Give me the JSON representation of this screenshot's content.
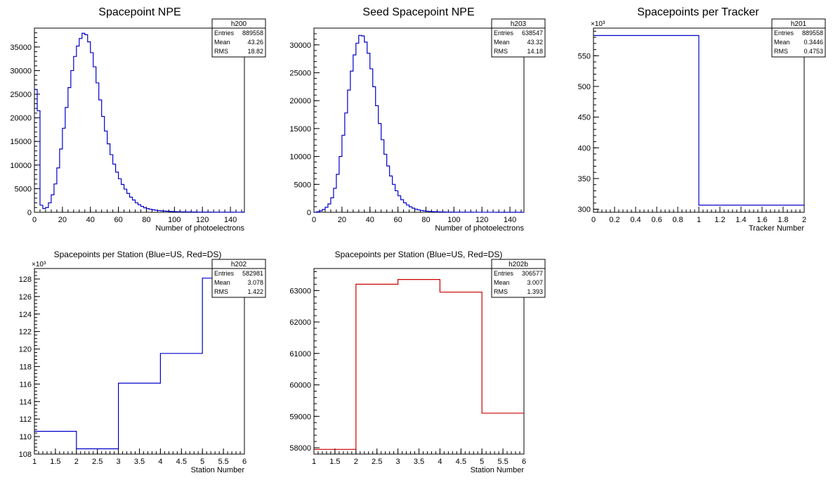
{
  "chart_data": [
    {
      "type": "histogram",
      "title": "Spacepoint NPE",
      "xlabel": "Number of photoelectrons",
      "xlim": [
        0,
        150
      ],
      "ylim": [
        0,
        39000
      ],
      "x_ticks": [
        0,
        20,
        40,
        60,
        80,
        100,
        120,
        140
      ],
      "y_ticks": [
        0,
        5000,
        10000,
        15000,
        20000,
        25000,
        30000,
        35000
      ],
      "y_multiplier": "",
      "stats": {
        "name": "h200",
        "rows": [
          [
            "Entries",
            "889558"
          ],
          [
            "Mean",
            "43.26"
          ],
          [
            "RMS",
            "18.82"
          ]
        ]
      },
      "series": [
        {
          "color": "#0000cc",
          "bin_width": 2,
          "values": [
            26000,
            21500,
            1500,
            800,
            1000,
            2000,
            3700,
            6000,
            9400,
            13400,
            17800,
            22200,
            26400,
            30000,
            33000,
            35200,
            36800,
            37900,
            37600,
            36100,
            33800,
            30800,
            27400,
            23800,
            20300,
            17200,
            14500,
            12200,
            10200,
            8500,
            7100,
            5900,
            4900,
            4000,
            3200,
            2600,
            2000,
            1600,
            1250,
            950,
            780,
            640,
            520,
            430,
            360,
            300,
            260,
            220,
            190,
            160,
            140,
            120,
            100,
            90,
            80,
            70,
            60,
            55,
            50,
            45,
            40,
            35,
            32,
            30,
            28,
            25,
            22,
            20,
            18,
            16,
            15,
            14,
            13,
            12,
            40
          ]
        }
      ]
    },
    {
      "type": "histogram",
      "title": "Seed Spacepoint NPE",
      "xlabel": "Number of photoelectrons",
      "xlim": [
        0,
        150
      ],
      "ylim": [
        0,
        33000
      ],
      "x_ticks": [
        0,
        20,
        40,
        60,
        80,
        100,
        120,
        140
      ],
      "y_ticks": [
        0,
        5000,
        10000,
        15000,
        20000,
        25000,
        30000
      ],
      "y_multiplier": "",
      "stats": {
        "name": "h203",
        "rows": [
          [
            "Entries",
            "638547"
          ],
          [
            "Mean",
            "43.32"
          ],
          [
            "RMS",
            "14.18"
          ]
        ]
      },
      "series": [
        {
          "color": "#0000cc",
          "bin_width": 2,
          "values": [
            0,
            100,
            250,
            500,
            900,
            1500,
            2600,
            4300,
            6800,
            10000,
            13800,
            17800,
            21900,
            25300,
            28200,
            30300,
            31700,
            31600,
            30500,
            28500,
            25700,
            22500,
            19100,
            15900,
            13000,
            10400,
            8300,
            6500,
            5000,
            3850,
            2950,
            2250,
            1700,
            1300,
            980,
            740,
            560,
            420,
            320,
            250,
            190,
            150,
            120,
            95,
            75,
            60,
            50,
            42,
            35,
            30,
            25,
            22,
            20,
            18,
            16,
            14,
            12,
            11,
            10,
            9,
            8,
            7,
            6,
            5,
            5,
            4,
            4,
            3,
            3,
            3,
            2,
            2,
            2,
            2,
            2
          ]
        }
      ]
    },
    {
      "type": "histogram",
      "title": "Spacepoints per Tracker",
      "xlabel": "Tracker Number",
      "xlim": [
        0,
        2
      ],
      "ylim": [
        295,
        595
      ],
      "x_ticks": [
        0,
        0.2,
        0.4,
        0.6,
        0.8,
        1,
        1.2,
        1.4,
        1.6,
        1.8,
        2
      ],
      "y_ticks": [
        300,
        350,
        400,
        450,
        500,
        550
      ],
      "y_multiplier": "×10³",
      "stats": {
        "name": "h201",
        "rows": [
          [
            "Entries",
            "889558"
          ],
          [
            "Mean",
            "0.3446"
          ],
          [
            "RMS",
            "0.4753"
          ]
        ]
      },
      "series": [
        {
          "color": "#0000cc",
          "bin_width": 1,
          "values": [
            582.981,
            306.577
          ]
        }
      ]
    },
    {
      "type": "histogram",
      "title": "Spacepoints per Station (Blue=US, Red=DS)",
      "xlabel": "Station Number",
      "xlim": [
        1,
        6
      ],
      "ylim": [
        108,
        129.2
      ],
      "x_ticks": [
        1,
        1.5,
        2,
        2.5,
        3,
        3.5,
        4,
        4.5,
        5,
        5.5,
        6
      ],
      "y_ticks": [
        108,
        110,
        112,
        114,
        116,
        118,
        120,
        122,
        124,
        126,
        128
      ],
      "y_multiplier": "×10³",
      "stats": {
        "name": "h202",
        "rows": [
          [
            "Entries",
            "582981"
          ],
          [
            "Mean",
            "3.078"
          ],
          [
            "RMS",
            "1.422"
          ]
        ]
      },
      "series": [
        {
          "color": "#0000cc",
          "bin_width": 1,
          "values": [
            110.6,
            108.6,
            116.1,
            119.5,
            128.1
          ]
        }
      ]
    },
    {
      "type": "histogram",
      "title": "Spacepoints per Station (Blue=US, Red=DS)",
      "xlabel": "Station Number",
      "xlim": [
        1,
        6
      ],
      "ylim": [
        57800,
        63700
      ],
      "x_ticks": [
        1,
        1.5,
        2,
        2.5,
        3,
        3.5,
        4,
        4.5,
        5,
        5.5,
        6
      ],
      "y_ticks": [
        58000,
        59000,
        60000,
        61000,
        62000,
        63000
      ],
      "y_multiplier": "",
      "stats": {
        "name": "h202b",
        "rows": [
          [
            "Entries",
            "306577"
          ],
          [
            "Mean",
            "3.007"
          ],
          [
            "RMS",
            "1.393"
          ]
        ]
      },
      "series": [
        {
          "color": "#cc0000",
          "bin_width": 1,
          "values": [
            57950,
            63200,
            63350,
            62950,
            59100
          ]
        }
      ]
    }
  ]
}
